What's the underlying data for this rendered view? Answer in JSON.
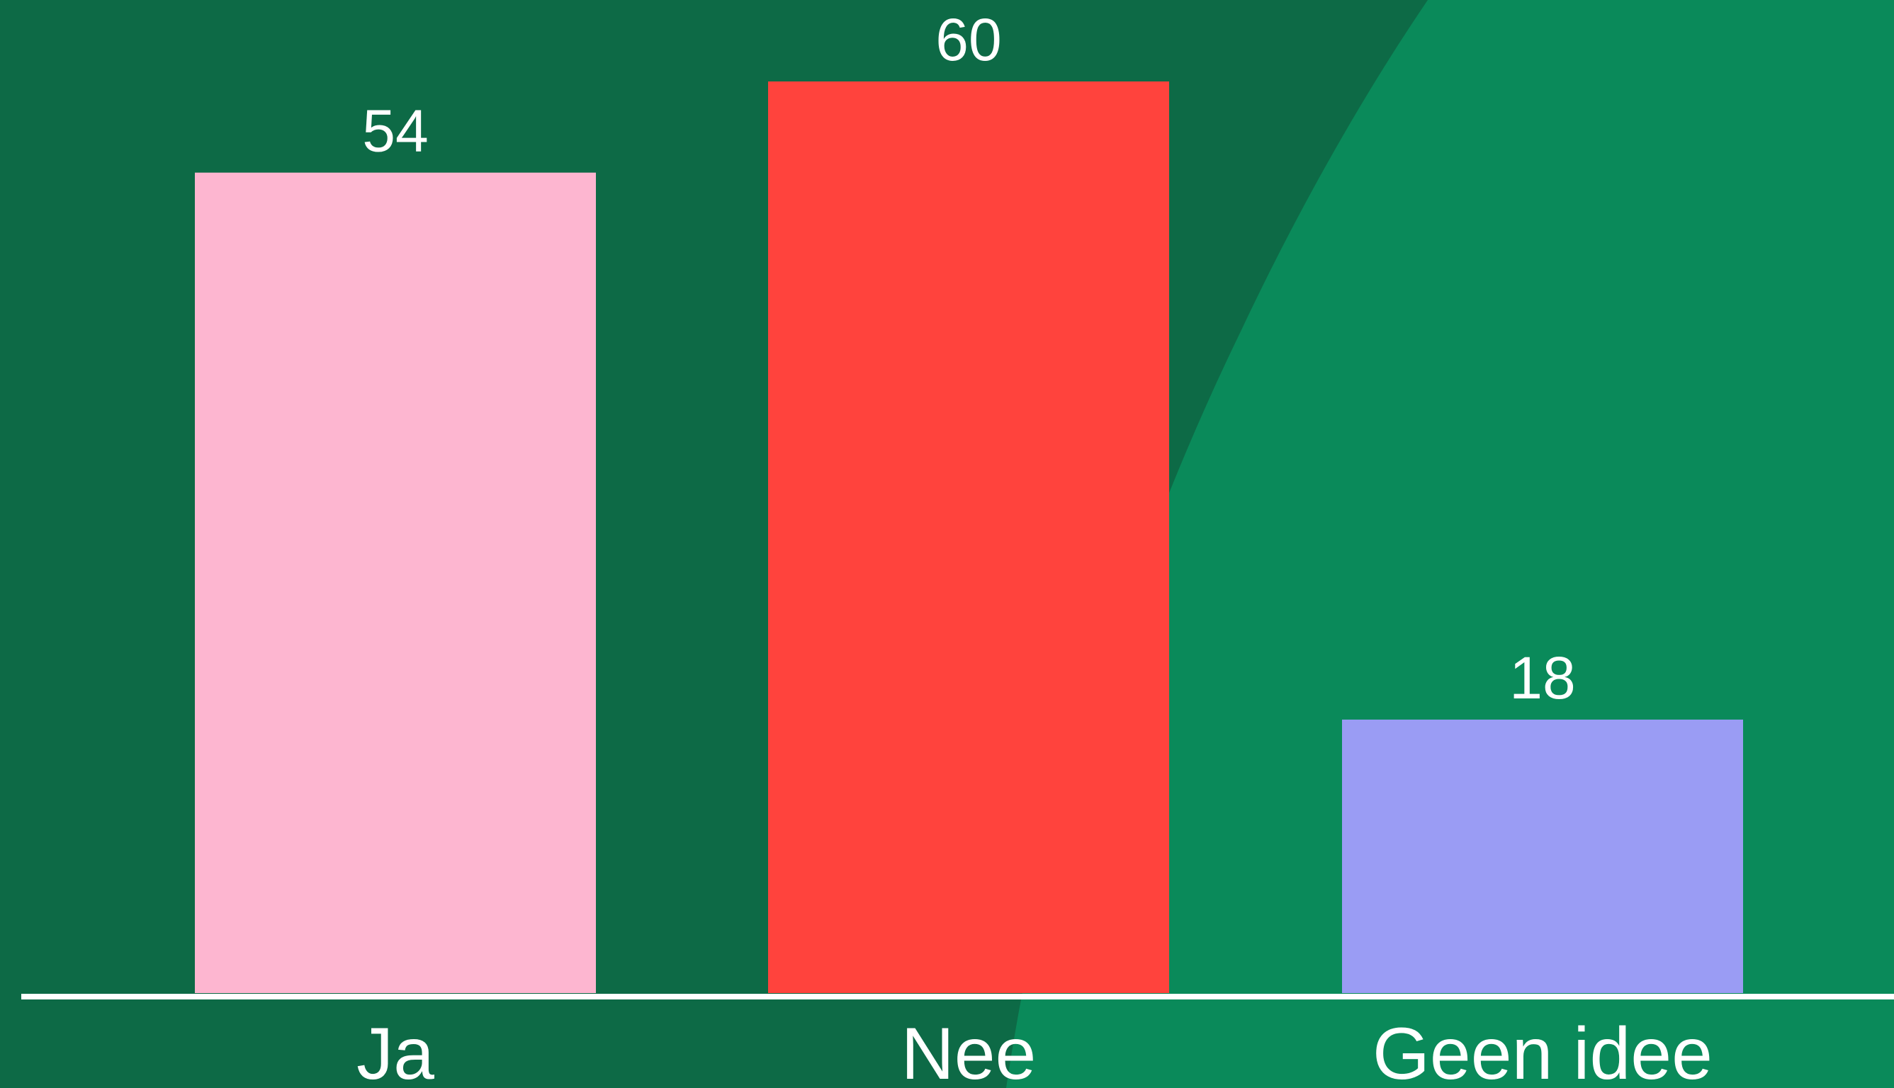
{
  "theme": {
    "background": "#0d6a46",
    "background_shape": "#0a8a5a",
    "axis_color": "#ffffff",
    "label_color": "#ffffff"
  },
  "chart_data": {
    "type": "bar",
    "categories": [
      "Ja",
      "Nee",
      "Geen idee"
    ],
    "values": [
      54,
      60,
      18
    ],
    "colors": [
      "#fdb6d0",
      "#ff433d",
      "#9a9cf4"
    ],
    "data_labels": [
      "54",
      "60",
      "18"
    ],
    "ylim": [
      0,
      60
    ],
    "grid": false,
    "legend": "none",
    "title": "",
    "xlabel": "",
    "ylabel": ""
  }
}
